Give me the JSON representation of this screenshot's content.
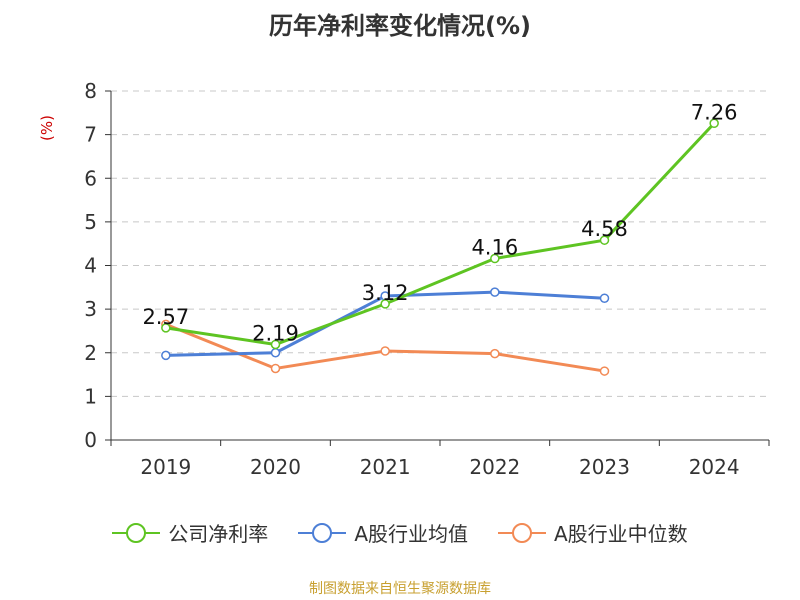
{
  "chart_data": {
    "type": "line",
    "title": "历年净利率变化情况(%)",
    "ylabel": "(%)",
    "categories": [
      "2019",
      "2020",
      "2021",
      "2022",
      "2023",
      "2024"
    ],
    "ylim": [
      0,
      8
    ],
    "yticks": [
      "0",
      "1",
      "2",
      "3",
      "4",
      "5",
      "6",
      "7",
      "8"
    ],
    "grid": true,
    "legend_position": "bottom",
    "series": [
      {
        "name": "公司净利率",
        "color": "#5ec422",
        "values": [
          2.57,
          2.19,
          3.12,
          4.16,
          4.58,
          7.26
        ],
        "labels": [
          "2.57",
          "2.19",
          "3.12",
          "4.16",
          "4.58",
          "7.26"
        ]
      },
      {
        "name": "A股行业均值",
        "color": "#4d7fd6",
        "values": [
          1.94,
          2.0,
          3.3,
          3.39,
          3.25,
          null
        ]
      },
      {
        "name": "A股行业中位数",
        "color": "#f28a55",
        "values": [
          2.65,
          1.64,
          2.04,
          1.98,
          1.58,
          null
        ]
      }
    ]
  },
  "source": "制图数据来自恒生聚源数据库"
}
